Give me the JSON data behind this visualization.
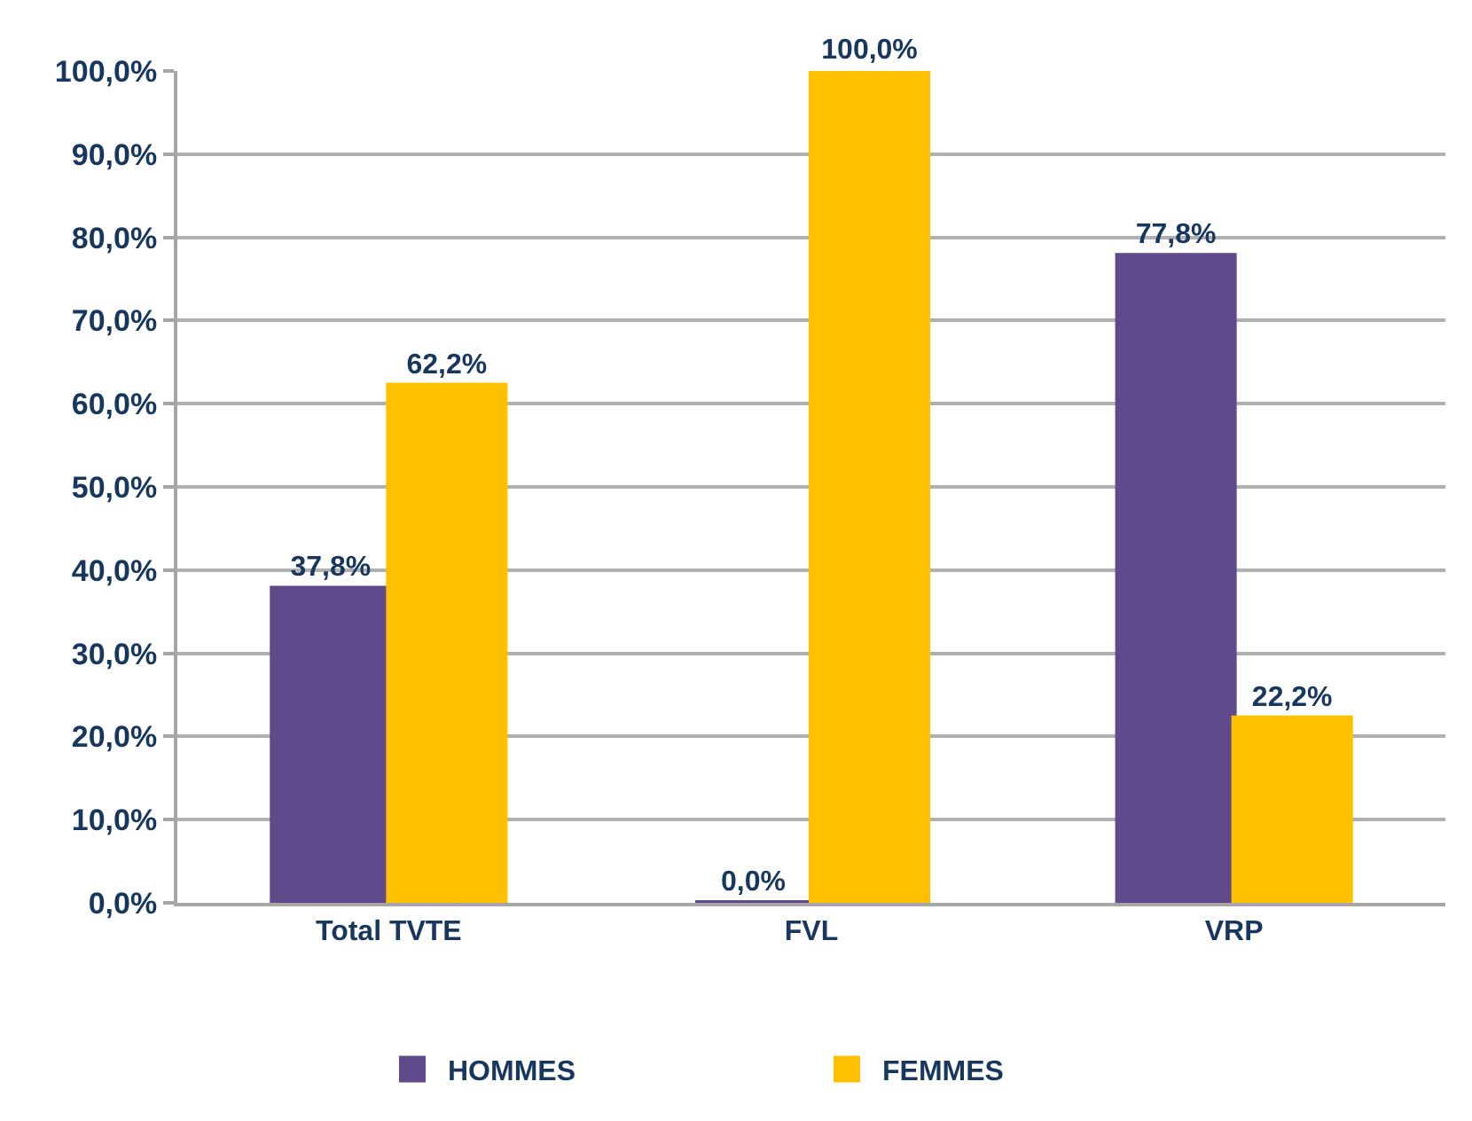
{
  "chart_data": {
    "type": "bar",
    "categories": [
      "Total TVTE",
      "FVL",
      "VRP"
    ],
    "series": [
      {
        "name": "HOMMES",
        "color": "#5f4b8b",
        "values": [
          37.8,
          0.0,
          77.8
        ],
        "value_labels": [
          "37,8%",
          "0,0%",
          "77,8%"
        ]
      },
      {
        "name": "FEMMES",
        "color": "#ffc000",
        "values": [
          62.2,
          100.0,
          22.2
        ],
        "value_labels": [
          "62,2%",
          "100,0%",
          "22,2%"
        ]
      }
    ],
    "ylim": [
      0,
      100
    ],
    "yticks": [
      {
        "value": 0,
        "label": "0,0%"
      },
      {
        "value": 10,
        "label": "10,0%"
      },
      {
        "value": 20,
        "label": "20,0%"
      },
      {
        "value": 30,
        "label": "30,0%"
      },
      {
        "value": 40,
        "label": "40,0%"
      },
      {
        "value": 50,
        "label": "50,0%"
      },
      {
        "value": 60,
        "label": "60,0%"
      },
      {
        "value": 70,
        "label": "70,0%"
      },
      {
        "value": 80,
        "label": "80,0%"
      },
      {
        "value": 90,
        "label": "90,0%"
      },
      {
        "value": 100,
        "label": "100,0%"
      }
    ],
    "grid": "y",
    "legend": "bottom"
  }
}
